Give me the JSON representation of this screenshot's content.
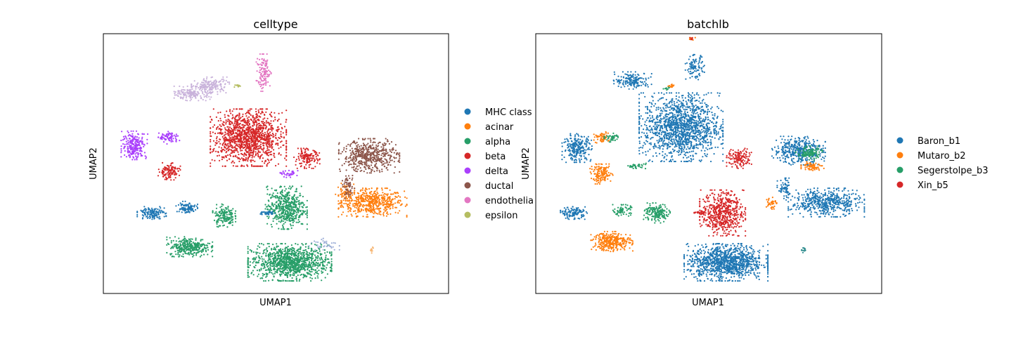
{
  "chart_data": [
    {
      "type": "scatter",
      "title": "celltype",
      "xlabel": "UMAP1",
      "ylabel": "UMAP2",
      "grid": false,
      "ticks": false,
      "xlim": [
        0,
        100
      ],
      "ylim": [
        0,
        100
      ],
      "legend_placement": "right",
      "legend": [
        {
          "label": "MHC class",
          "color": "#1f77b4"
        },
        {
          "label": "acinar",
          "color": "#ff7f0e"
        },
        {
          "label": "alpha",
          "color": "#279e68"
        },
        {
          "label": "beta",
          "color": "#d62728"
        },
        {
          "label": "delta",
          "color": "#aa40fc"
        },
        {
          "label": "ductal",
          "color": "#8c564b"
        },
        {
          "label": "endothelia",
          "color": "#e377c2"
        },
        {
          "label": "epsilon",
          "color": "#b5bd61"
        }
      ],
      "clusters": [
        {
          "label": "acinar",
          "color": "#ff7f0e",
          "cx": 78,
          "cy": 35,
          "rx": 9,
          "ry": 5,
          "n": 520
        },
        {
          "label": "acinar",
          "color": "#ff7f0e",
          "cx": 70,
          "cy": 38,
          "rx": 2.5,
          "ry": 4,
          "n": 70
        },
        {
          "label": "alpha",
          "color": "#279e68",
          "cx": 54,
          "cy": 12,
          "rx": 11,
          "ry": 6.5,
          "n": 1100
        },
        {
          "label": "alpha",
          "color": "#279e68",
          "cx": 25,
          "cy": 18,
          "rx": 6,
          "ry": 3.5,
          "n": 320
        },
        {
          "label": "alpha",
          "color": "#279e68",
          "cx": 53,
          "cy": 33,
          "rx": 5.5,
          "ry": 7.5,
          "n": 520
        },
        {
          "label": "alpha",
          "color": "#279e68",
          "cx": 35,
          "cy": 30,
          "rx": 3,
          "ry": 4,
          "n": 160
        },
        {
          "label": "beta",
          "color": "#d62728",
          "cx": 42,
          "cy": 60,
          "rx": 10,
          "ry": 10,
          "n": 1300
        },
        {
          "label": "beta",
          "color": "#d62728",
          "cx": 19,
          "cy": 47,
          "rx": 3,
          "ry": 3,
          "n": 120
        },
        {
          "label": "beta",
          "color": "#d62728",
          "cx": 59,
          "cy": 52,
          "rx": 3.5,
          "ry": 3.5,
          "n": 140
        },
        {
          "label": "delta",
          "color": "#aa40fc",
          "cx": 9,
          "cy": 57,
          "rx": 3.5,
          "ry": 5,
          "n": 240
        },
        {
          "label": "delta",
          "color": "#aa40fc",
          "cx": 19,
          "cy": 60,
          "rx": 2.8,
          "ry": 2.2,
          "n": 80
        },
        {
          "label": "delta",
          "color": "#aa40fc",
          "cx": 54,
          "cy": 46,
          "rx": 2.5,
          "ry": 1.2,
          "n": 35
        },
        {
          "label": "ductal",
          "color": "#8c564b",
          "cx": 77,
          "cy": 53,
          "rx": 8,
          "ry": 6,
          "n": 520
        },
        {
          "label": "ductal",
          "color": "#8c564b",
          "cx": 71,
          "cy": 41,
          "rx": 1.6,
          "ry": 4,
          "n": 60
        },
        {
          "label": "endothelia",
          "color": "#e377c2",
          "cx": 46.5,
          "cy": 85,
          "rx": 2,
          "ry": 6.5,
          "n": 120
        },
        {
          "label": "epsilon",
          "color": "#b5bd61",
          "cx": 39,
          "cy": 80,
          "rx": 1.2,
          "ry": 0.6,
          "n": 12
        },
        {
          "label": "MHC class",
          "color": "#1f77b4",
          "cx": 14,
          "cy": 31,
          "rx": 3.8,
          "ry": 2.2,
          "n": 130
        },
        {
          "label": "MHC class",
          "color": "#1f77b4",
          "cx": 24,
          "cy": 33,
          "rx": 3,
          "ry": 2.2,
          "n": 100
        },
        {
          "label": "MHC class",
          "color": "#1f77b4",
          "cx": 47.5,
          "cy": 31,
          "rx": 2.2,
          "ry": 0.8,
          "n": 35
        },
        {
          "label": "MHC class",
          "color": "#c9b3db",
          "cx": 26,
          "cy": 77,
          "rx": 5,
          "ry": 2.5,
          "n": 170
        },
        {
          "label": "MHC class",
          "color": "#c9b3db",
          "cx": 31,
          "cy": 80,
          "rx": 5,
          "ry": 3,
          "n": 160
        },
        {
          "label": "acinar",
          "color": "#f6b572",
          "cx": 77.8,
          "cy": 17,
          "rx": 0.6,
          "ry": 1.3,
          "n": 12
        },
        {
          "label": "MHC class",
          "color": "#9fb0d8",
          "cx": 64,
          "cy": 19,
          "rx": 4,
          "ry": 2,
          "n": 40
        }
      ]
    },
    {
      "type": "scatter",
      "title": "batchlb",
      "xlabel": "UMAP1",
      "ylabel": "UMAP2",
      "grid": false,
      "ticks": false,
      "xlim": [
        0,
        100
      ],
      "ylim": [
        0,
        100
      ],
      "legend_placement": "right",
      "legend": [
        {
          "label": "Baron_b1",
          "color": "#1f77b4"
        },
        {
          "label": "Mutaro_b2",
          "color": "#ff7f0e"
        },
        {
          "label": "Segerstolpe_b3",
          "color": "#279e68"
        },
        {
          "label": "Xin_b5",
          "color": "#d62728"
        }
      ],
      "clusters": [
        {
          "label": "Baron_b1",
          "color": "#1f77b4",
          "cx": 42,
          "cy": 64,
          "rx": 11,
          "ry": 12,
          "n": 1400
        },
        {
          "label": "Baron_b1",
          "color": "#1f77b4",
          "cx": 55,
          "cy": 12,
          "rx": 11,
          "ry": 6.5,
          "n": 1100
        },
        {
          "label": "Baron_b1",
          "color": "#1f77b4",
          "cx": 84,
          "cy": 35,
          "rx": 10,
          "ry": 5,
          "n": 520
        },
        {
          "label": "Baron_b1",
          "color": "#1f77b4",
          "cx": 76,
          "cy": 55,
          "rx": 7,
          "ry": 5,
          "n": 400
        },
        {
          "label": "Baron_b1",
          "color": "#1f77b4",
          "cx": 12,
          "cy": 56,
          "rx": 4,
          "ry": 5,
          "n": 240
        },
        {
          "label": "Baron_b1",
          "color": "#1f77b4",
          "cx": 28,
          "cy": 82,
          "rx": 5,
          "ry": 3,
          "n": 160
        },
        {
          "label": "Baron_b1",
          "color": "#1f77b4",
          "cx": 11,
          "cy": 31,
          "rx": 3.5,
          "ry": 2.2,
          "n": 120
        },
        {
          "label": "Baron_b1",
          "color": "#1f77b4",
          "cx": 46,
          "cy": 87,
          "rx": 2.5,
          "ry": 4.5,
          "n": 100
        },
        {
          "label": "Baron_b1",
          "color": "#1f77b4",
          "cx": 72,
          "cy": 40,
          "rx": 2,
          "ry": 4,
          "n": 60
        },
        {
          "label": "Mutaro_b2",
          "color": "#ff7f0e",
          "cx": 22,
          "cy": 20,
          "rx": 5.5,
          "ry": 3.5,
          "n": 320
        },
        {
          "label": "Mutaro_b2",
          "color": "#ff7f0e",
          "cx": 19,
          "cy": 46,
          "rx": 3,
          "ry": 3.5,
          "n": 140
        },
        {
          "label": "Mutaro_b2",
          "color": "#ff7f0e",
          "cx": 19,
          "cy": 60,
          "rx": 2,
          "ry": 2,
          "n": 60
        },
        {
          "label": "Mutaro_b2",
          "color": "#ff7f0e",
          "cx": 80,
          "cy": 49,
          "rx": 3,
          "ry": 1.5,
          "n": 70
        },
        {
          "label": "Mutaro_b2",
          "color": "#ff7f0e",
          "cx": 68,
          "cy": 35,
          "rx": 1.5,
          "ry": 2.5,
          "n": 40
        },
        {
          "label": "Mutaro_b2",
          "color": "#ff7f0e",
          "cx": 39,
          "cy": 80,
          "rx": 1.2,
          "ry": 0.7,
          "n": 14
        },
        {
          "label": "Mutaro_b2",
          "color": "#ff7f0e",
          "cx": 45,
          "cy": 98,
          "rx": 1,
          "ry": 0.8,
          "n": 10
        },
        {
          "label": "Segerstolpe_b3",
          "color": "#279e68",
          "cx": 35,
          "cy": 31,
          "rx": 3.5,
          "ry": 3.5,
          "n": 170
        },
        {
          "label": "Segerstolpe_b3",
          "color": "#279e68",
          "cx": 25,
          "cy": 32,
          "rx": 2.5,
          "ry": 2,
          "n": 70
        },
        {
          "label": "Segerstolpe_b3",
          "color": "#279e68",
          "cx": 22,
          "cy": 60,
          "rx": 2,
          "ry": 1.5,
          "n": 45
        },
        {
          "label": "Segerstolpe_b3",
          "color": "#279e68",
          "cx": 79,
          "cy": 54,
          "rx": 3.5,
          "ry": 2.5,
          "n": 110
        },
        {
          "label": "Segerstolpe_b3",
          "color": "#279e68",
          "cx": 29,
          "cy": 49,
          "rx": 3,
          "ry": 1,
          "n": 35
        },
        {
          "label": "Segerstolpe_b3",
          "color": "#279e68",
          "cx": 38,
          "cy": 79,
          "rx": 1,
          "ry": 0.6,
          "n": 10
        },
        {
          "label": "Xin_b5",
          "color": "#d62728",
          "cx": 54,
          "cy": 31,
          "rx": 6,
          "ry": 8,
          "n": 560
        },
        {
          "label": "Xin_b5",
          "color": "#d62728",
          "cx": 59,
          "cy": 52,
          "rx": 3.5,
          "ry": 3.5,
          "n": 140
        },
        {
          "label": "Xin_b5",
          "color": "#d62728",
          "cx": 47.5,
          "cy": 31,
          "rx": 2.2,
          "ry": 0.8,
          "n": 30
        },
        {
          "label": "Xin_b5",
          "color": "#d62728",
          "cx": 45,
          "cy": 98,
          "rx": 0.8,
          "ry": 0.8,
          "n": 6
        },
        {
          "label": "Baron_b1",
          "color": "#2a8a8c",
          "cx": 77.5,
          "cy": 17,
          "rx": 0.6,
          "ry": 1.3,
          "n": 12
        }
      ]
    }
  ]
}
